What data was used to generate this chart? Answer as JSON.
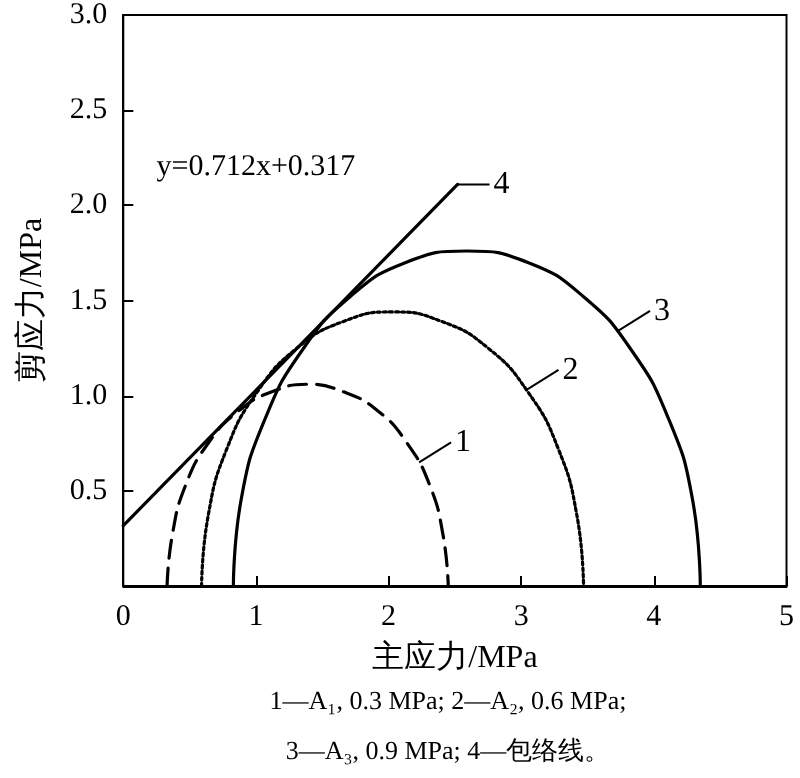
{
  "chart_data": {
    "type": "line",
    "xlabel": "主应力/MPa",
    "ylabel": "剪应力/MPa",
    "xlim": [
      0,
      5
    ],
    "xticks": [
      0,
      1,
      2,
      3,
      4,
      5
    ],
    "ylim": [
      0,
      3
    ],
    "yticks": [
      {
        "value": 0,
        "label": null
      },
      {
        "value": 0.5,
        "label": "0.5"
      },
      {
        "value": 1,
        "label": "1.0"
      },
      {
        "value": 1.5,
        "label": "1.5"
      },
      {
        "value": 2,
        "label": "2.0"
      },
      {
        "value": 2.5,
        "label": "2.5"
      },
      {
        "value": 3,
        "label": "3.0"
      }
    ],
    "grid": false,
    "marker": "none",
    "series": [
      {
        "color": "#000000",
        "line_style": "dashed",
        "x": [
          0.33,
          0.37,
          0.47,
          0.64,
          0.87,
          1.12,
          1.39,
          1.66,
          1.92,
          2.14,
          2.31,
          2.41,
          2.45
        ],
        "values": [
          0,
          0.27,
          0.53,
          0.75,
          0.92,
          1.02,
          1.06,
          1.02,
          0.92,
          0.75,
          0.53,
          0.27,
          0
        ]
      },
      {
        "color": "#000000",
        "line_style": "dotted",
        "x": [
          0.59,
          0.64,
          0.78,
          1.01,
          1.31,
          1.66,
          2.03,
          2.4,
          2.75,
          3.05,
          3.28,
          3.42,
          3.47
        ],
        "values": [
          0,
          0.37,
          0.72,
          1.02,
          1.25,
          1.39,
          1.44,
          1.39,
          1.25,
          1.02,
          0.72,
          0.37,
          0
        ]
      },
      {
        "color": "#000000",
        "line_style": "solid",
        "x": [
          0.83,
          0.89,
          1.07,
          1.35,
          1.71,
          2.13,
          2.59,
          3.05,
          3.47,
          3.83,
          4.11,
          4.29,
          4.35
        ],
        "values": [
          0,
          0.46,
          0.88,
          1.24,
          1.52,
          1.7,
          1.76,
          1.7,
          1.52,
          1.24,
          0.88,
          0.46,
          0
        ]
      },
      {
        "color": "#000000",
        "line_style": "solid",
        "x": [
          0,
          2.52
        ],
        "values": [
          0.317,
          2.11
        ]
      }
    ],
    "annotations": [
      {
        "text": "1",
        "x": 2.23,
        "y": 0.65
      },
      {
        "text": "2",
        "x": 3.04,
        "y": 1.03
      },
      {
        "text": "3",
        "x": 3.73,
        "y": 1.34
      },
      {
        "text": "4",
        "x": 2.52,
        "y": 2.11
      },
      "y=0.712x+0.317",
      "1—A₁, 0.3 MPa; 2—A₂, 0.6 MPa;",
      "3—A₃, 0.9 MPa; 4—包络线。"
    ]
  }
}
